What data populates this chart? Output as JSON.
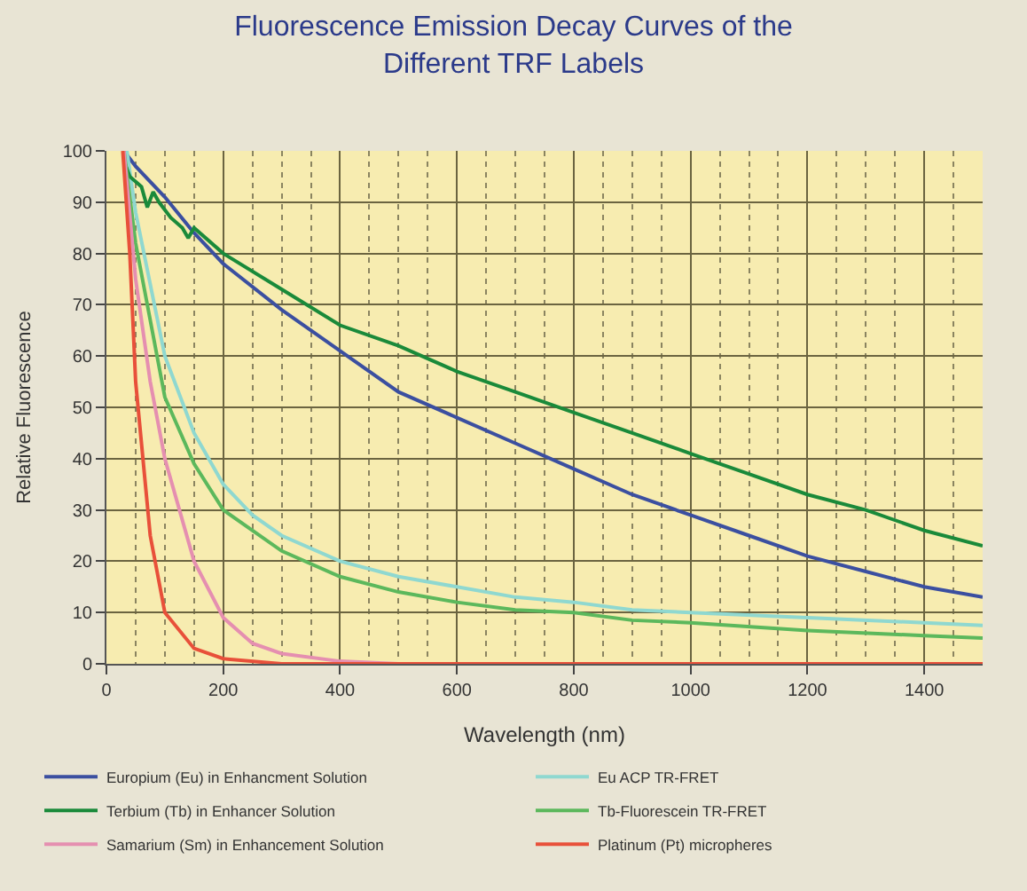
{
  "chart_data": {
    "type": "line",
    "title": "Fluorescence Emission Decay Curves of the\nDifferent TRF Labels",
    "xlabel": "Wavelength (nm)",
    "ylabel": "Relative Fluorescence",
    "xlim": [
      0,
      1500
    ],
    "xticks": [
      0,
      {
        "value": 50,
        "label": null
      },
      {
        "value": 100,
        "label": null
      },
      {
        "value": 150,
        "label": null
      },
      200,
      {
        "value": 250,
        "label": null
      },
      {
        "value": 300,
        "label": null
      },
      {
        "value": 350,
        "label": null
      },
      400,
      {
        "value": 450,
        "label": null
      },
      {
        "value": 500,
        "label": null
      },
      {
        "value": 550,
        "label": null
      },
      600,
      {
        "value": 650,
        "label": null
      },
      {
        "value": 700,
        "label": null
      },
      {
        "value": 750,
        "label": null
      },
      800,
      {
        "value": 850,
        "label": null
      },
      {
        "value": 900,
        "label": null
      },
      {
        "value": 950,
        "label": null
      },
      1000,
      {
        "value": 1050,
        "label": null
      },
      {
        "value": 1100,
        "label": null
      },
      {
        "value": 1150,
        "label": null
      },
      1200,
      {
        "value": 1250,
        "label": null
      },
      {
        "value": 1300,
        "label": null
      },
      {
        "value": 1350,
        "label": null
      },
      1400,
      {
        "value": 1450,
        "label": null
      }
    ],
    "ylim": [
      0,
      100
    ],
    "yticks": [
      0,
      10,
      20,
      30,
      40,
      50,
      60,
      70,
      80,
      90,
      100
    ],
    "grid": true,
    "legend": "bottom",
    "marker": "none",
    "line_style": "solid",
    "series": [
      {
        "name": "Europium (Eu) in Enhancment Solution",
        "color": "#3b4fa0",
        "x": [
          30,
          50,
          100,
          150,
          200,
          300,
          400,
          500,
          600,
          700,
          800,
          900,
          1000,
          1100,
          1200,
          1300,
          1400,
          1500
        ],
        "values": [
          100,
          97,
          91,
          84,
          78,
          69,
          61,
          53,
          48,
          43,
          38,
          33,
          29,
          25,
          21,
          18,
          15,
          13
        ]
      },
      {
        "name": "Eu ACP TR-FRET",
        "color": "#8fd8d0",
        "x": [
          35,
          50,
          100,
          150,
          200,
          250,
          300,
          400,
          500,
          600,
          700,
          800,
          900,
          1000,
          1200,
          1400,
          1500
        ],
        "values": [
          100,
          88,
          60,
          45,
          35,
          29,
          25,
          20,
          17,
          15,
          13,
          12,
          10.5,
          10,
          9,
          8,
          7.5
        ]
      },
      {
        "name": "Terbium (Tb) in Enhancer Solution",
        "color": "#1a8a3a",
        "x": [
          30,
          40,
          60,
          70,
          80,
          90,
          110,
          130,
          140,
          150,
          200,
          300,
          400,
          500,
          600,
          700,
          800,
          900,
          1000,
          1100,
          1200,
          1300,
          1400,
          1500
        ],
        "values": [
          98,
          95,
          93,
          89,
          92,
          90,
          87,
          85,
          83,
          85,
          80,
          73,
          66,
          62,
          57,
          53,
          49,
          45,
          41,
          37,
          33,
          30,
          26,
          23
        ]
      },
      {
        "name": "Tb-Fluorescein TR-FRET",
        "color": "#5cb85c",
        "x": [
          30,
          50,
          100,
          150,
          200,
          300,
          400,
          500,
          600,
          700,
          800,
          900,
          1000,
          1200,
          1400,
          1500
        ],
        "values": [
          100,
          82,
          52,
          39,
          30,
          22,
          17,
          14,
          12,
          10.5,
          10,
          8.5,
          8,
          6.5,
          5.5,
          5
        ]
      },
      {
        "name": "Samarium (Sm) in Enhancement Solution",
        "color": "#e58fb0",
        "x": [
          30,
          50,
          75,
          100,
          150,
          200,
          250,
          300,
          400,
          500,
          1500
        ],
        "values": [
          100,
          75,
          55,
          40,
          20,
          9,
          4,
          2,
          0.5,
          0,
          0
        ]
      },
      {
        "name": "Platinum (Pt) micropheres",
        "color": "#e8503a",
        "x": [
          28,
          40,
          50,
          75,
          100,
          150,
          200,
          300,
          1500
        ],
        "values": [
          100,
          80,
          55,
          25,
          10,
          3,
          1,
          0,
          0
        ]
      }
    ]
  }
}
